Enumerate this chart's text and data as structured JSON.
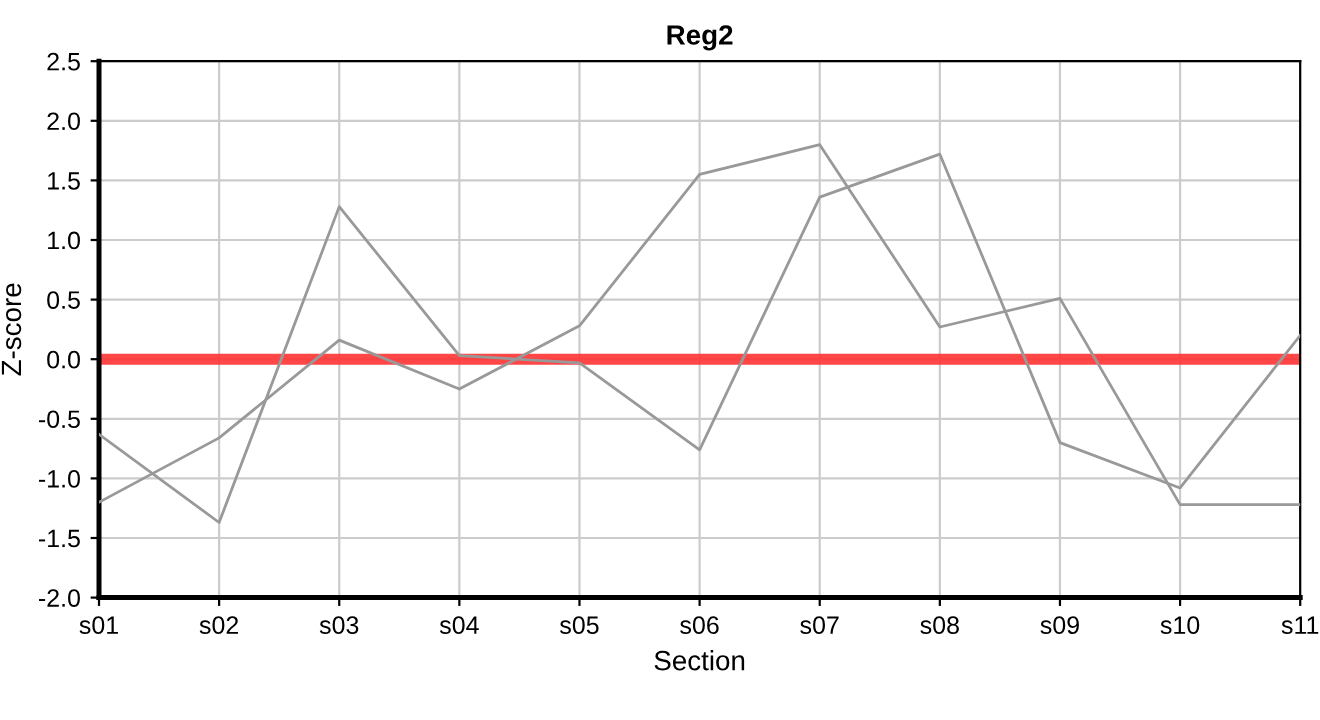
{
  "chart_data": {
    "type": "line",
    "title": "Reg2",
    "xlabel": "Section",
    "ylabel": "Z-score",
    "categories": [
      "s01",
      "s02",
      "s03",
      "s04",
      "s05",
      "s06",
      "s07",
      "s08",
      "s09",
      "s10",
      "s11"
    ],
    "series": [
      {
        "color": "#999999",
        "values": [
          -0.63,
          -1.37,
          1.28,
          0.03,
          -0.03,
          -0.76,
          1.36,
          1.72,
          -0.7,
          -1.08,
          0.2
        ]
      },
      {
        "color": "#999999",
        "values": [
          -1.2,
          -0.66,
          0.16,
          -0.25,
          0.28,
          1.55,
          1.8,
          0.27,
          0.51,
          -1.22,
          -1.22
        ]
      }
    ],
    "ylim": [
      -2.0,
      2.5
    ],
    "yticks": [
      {
        "value": -2.0,
        "label": "-2.0"
      },
      {
        "value": -1.5,
        "label": "-1.5"
      },
      {
        "value": -1.0,
        "label": "-1.0"
      },
      {
        "value": -0.5,
        "label": "-0.5"
      },
      {
        "value": 0.0,
        "label": "0.0"
      },
      {
        "value": 0.5,
        "label": "0.5"
      },
      {
        "value": 1.0,
        "label": "1.0"
      },
      {
        "value": 1.5,
        "label": "1.5"
      },
      {
        "value": 2.0,
        "label": "2.0"
      },
      {
        "value": 2.5,
        "label": "2.5"
      }
    ],
    "ref_lines": [
      {
        "axis": "y",
        "value": 0,
        "color": "#ff3333"
      }
    ],
    "grid": true,
    "legend": false,
    "marker": "none",
    "line_style": "solid"
  }
}
